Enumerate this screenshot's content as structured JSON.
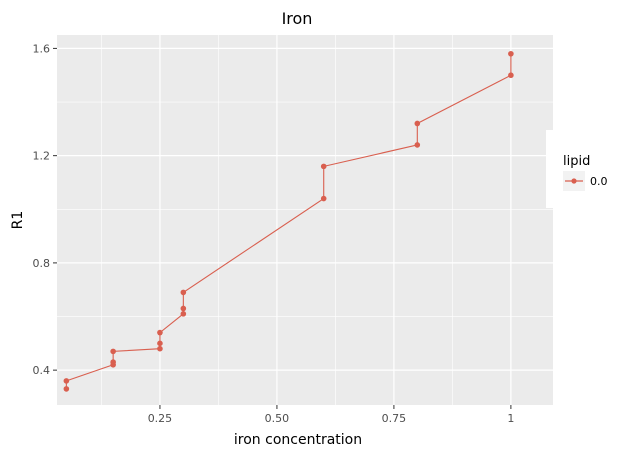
{
  "chart_data": {
    "type": "line",
    "title": "Iron",
    "xlabel": "iron concentration",
    "ylabel": "R1",
    "xlim": [
      0.03,
      1.09
    ],
    "ylim": [
      0.27,
      1.65
    ],
    "x_ticks": [
      0.25,
      0.5,
      0.75,
      1.0
    ],
    "x_tick_labels": [
      "0.25",
      "0.50",
      "0.75",
      "1"
    ],
    "y_ticks": [
      0.4,
      0.8,
      1.2,
      1.6
    ],
    "y_tick_labels": [
      "0.4",
      "0.8",
      "1.2",
      "1.6"
    ],
    "grid": true,
    "legend": {
      "title": "lipid",
      "position": "right",
      "entries": [
        "0.0"
      ]
    },
    "series": [
      {
        "name": "0.0",
        "color": "#d95f4f",
        "x": [
          0.05,
          0.05,
          0.15,
          0.15,
          0.15,
          0.25,
          0.25,
          0.25,
          0.3,
          0.3,
          0.3,
          0.6,
          0.6,
          0.8,
          0.8,
          1.0,
          1.0
        ],
        "y": [
          0.33,
          0.36,
          0.42,
          0.43,
          0.47,
          0.48,
          0.5,
          0.54,
          0.61,
          0.63,
          0.69,
          1.04,
          1.16,
          1.24,
          1.32,
          1.5,
          1.58
        ]
      }
    ]
  }
}
